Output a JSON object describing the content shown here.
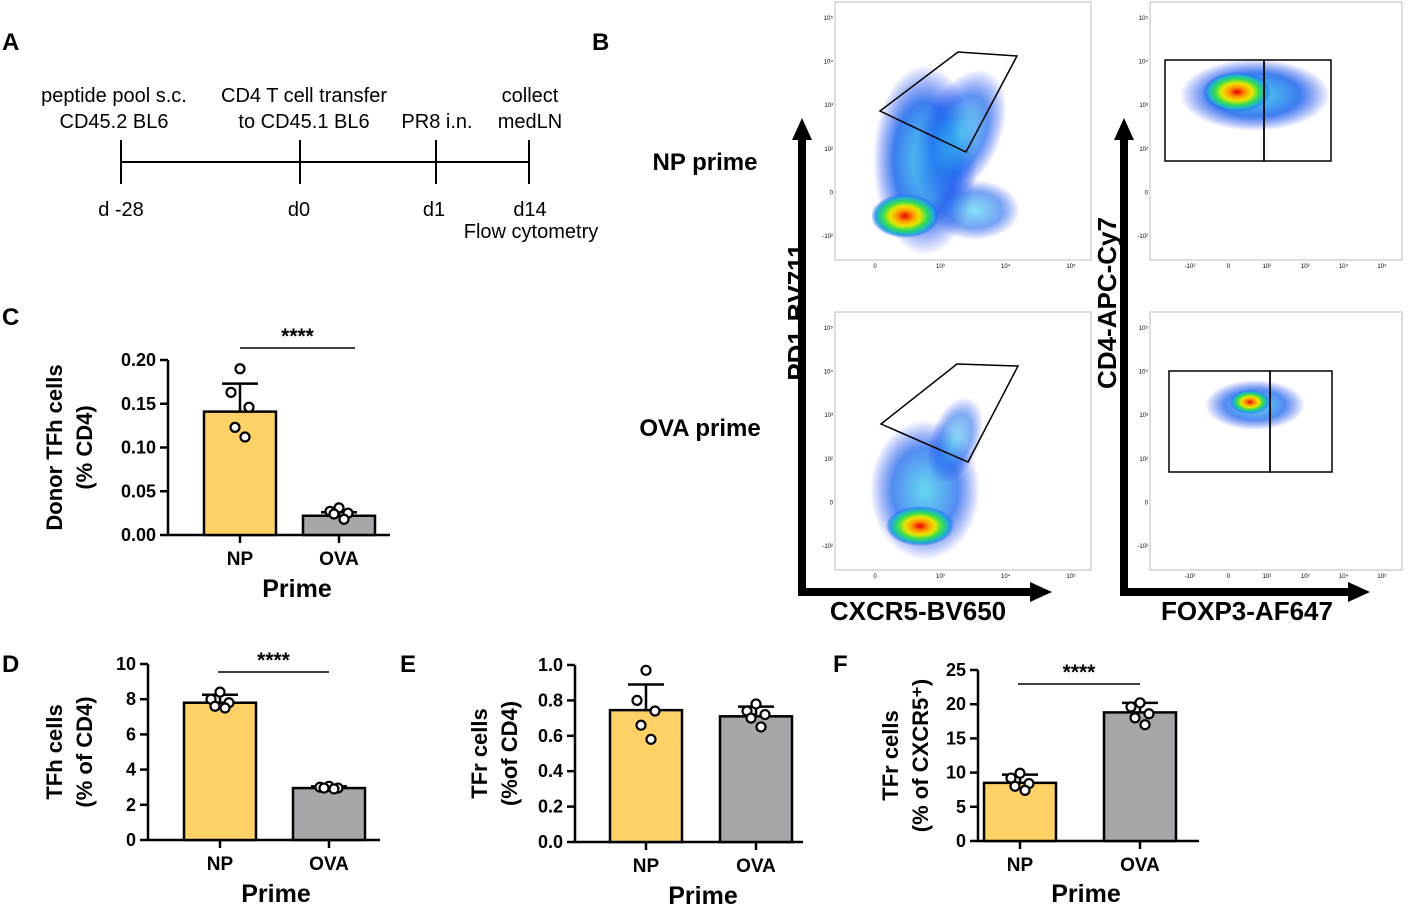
{
  "panels": {
    "A": "A",
    "B": "B",
    "C": "C",
    "D": "D",
    "E": "E",
    "F": "F"
  },
  "timeline": {
    "events": [
      {
        "top": "peptide pool s.c.",
        "bottom": "CD45.2 BL6",
        "day": "d -28",
        "extra": ""
      },
      {
        "top": "CD4 T cell transfer",
        "bottom": "to CD45.1 BL6",
        "day": "d0",
        "extra": ""
      },
      {
        "top": "",
        "bottom": "PR8 i.n.",
        "day": "d1",
        "extra": ""
      },
      {
        "top": "collect",
        "bottom": "medLN",
        "day": "d14",
        "extra": "Flow cytometry"
      }
    ]
  },
  "flow": {
    "row_labels": [
      "NP prime",
      "OVA prime"
    ],
    "left_y_axis": "PD1-BV711",
    "left_x_axis": "CXCR5-BV650",
    "right_y_axis": "CD4-APC-Cy7",
    "right_x_axis": "FOXP3-AF647",
    "tick_labels": {
      "left_y": [
        "10⁵",
        "10⁴",
        "10³",
        "10²",
        "0",
        "-10²"
      ],
      "left_x": [
        "0",
        "10³",
        "10⁴",
        "10⁵"
      ],
      "right_y": [
        "10⁵",
        "10⁴",
        "10³",
        "10²",
        "0",
        "-10²"
      ],
      "right_x": [
        "-10²",
        "0",
        "10²",
        "10³",
        "10⁴",
        "10⁵"
      ]
    }
  },
  "chart_data": [
    {
      "id": "C",
      "type": "bar",
      "categories": [
        "NP",
        "OVA"
      ],
      "values": [
        0.141,
        0.022
      ],
      "errors": [
        0.032,
        0.004
      ],
      "points": [
        [
          0.19,
          0.163,
          0.146,
          0.123,
          0.112
        ],
        [
          0.031,
          0.027,
          0.025,
          0.024,
          0.018
        ]
      ],
      "ylabel": [
        "Donor TFh cells",
        "(%  CD4)"
      ],
      "xlabel": "Prime",
      "ylim": [
        0,
        0.2
      ],
      "yticks": [
        "0.00",
        "0.05",
        "0.10",
        "0.15",
        "0.20"
      ],
      "significance": "****",
      "colors": [
        "#fdd165",
        "#a7a7ab"
      ]
    },
    {
      "id": "D",
      "type": "bar",
      "categories": [
        "NP",
        "OVA"
      ],
      "values": [
        7.8,
        2.95
      ],
      "errors": [
        0.45,
        0.1
      ],
      "points": [
        [
          8.4,
          8.0,
          7.8,
          7.6,
          7.5
        ],
        [
          3.05,
          3.0,
          2.95,
          2.95,
          2.9
        ]
      ],
      "ylabel": [
        "TFh cells",
        "(% of CD4)"
      ],
      "xlabel": "Prime",
      "ylim": [
        0,
        10
      ],
      "yticks": [
        "0",
        "2",
        "4",
        "6",
        "8",
        "10"
      ],
      "significance": "****",
      "colors": [
        "#fdd165",
        "#a7a7ab"
      ]
    },
    {
      "id": "E",
      "type": "bar",
      "categories": [
        "NP",
        "OVA"
      ],
      "values": [
        0.745,
        0.71
      ],
      "errors": [
        0.145,
        0.055
      ],
      "points": [
        [
          0.97,
          0.8,
          0.74,
          0.66,
          0.58
        ],
        [
          0.78,
          0.74,
          0.72,
          0.7,
          0.65
        ]
      ],
      "ylabel": [
        "TFr cells",
        "(%of CD4)"
      ],
      "xlabel": "Prime",
      "ylim": [
        0,
        1.0
      ],
      "yticks": [
        "0.0",
        "0.2",
        "0.4",
        "0.6",
        "0.8",
        "1.0"
      ],
      "significance": "",
      "colors": [
        "#fdd165",
        "#a7a7ab"
      ]
    },
    {
      "id": "F",
      "type": "bar",
      "categories": [
        "NP",
        "OVA"
      ],
      "values": [
        8.5,
        18.8
      ],
      "errors": [
        1.2,
        1.4
      ],
      "points": [
        [
          9.9,
          9.2,
          8.4,
          8.0,
          7.4
        ],
        [
          20.2,
          19.6,
          18.6,
          18.0,
          17.0
        ]
      ],
      "ylabel": [
        "TFr cells",
        "(% of CXCR5⁺)"
      ],
      "xlabel": "Prime",
      "ylim": [
        0,
        25
      ],
      "yticks": [
        "0",
        "5",
        "10",
        "15",
        "20",
        "25"
      ],
      "significance": "****",
      "colors": [
        "#fdd165",
        "#a7a7ab"
      ]
    }
  ]
}
